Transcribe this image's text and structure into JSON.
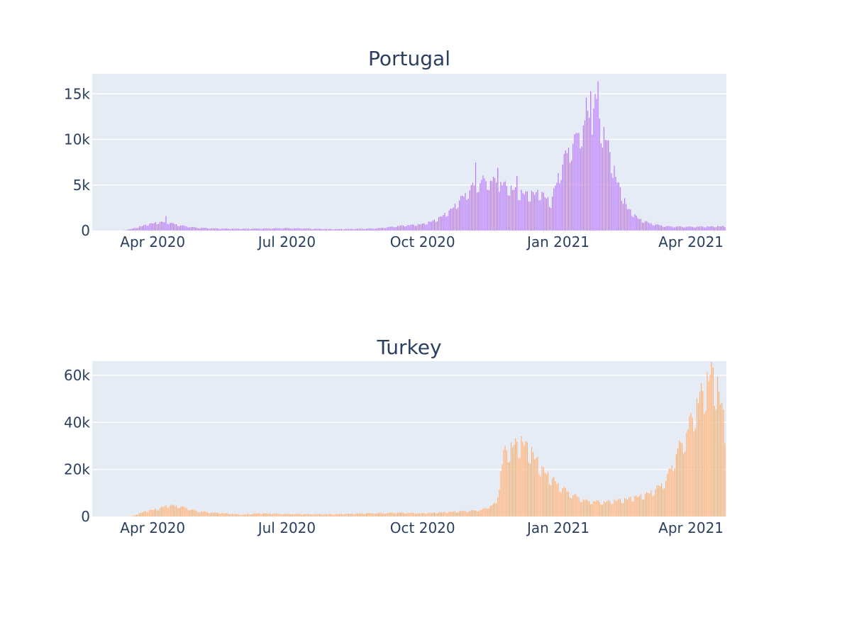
{
  "chart_data": [
    {
      "type": "bar",
      "title": "Portugal",
      "xlabel": "",
      "ylabel": "",
      "color": "#ab63fa",
      "background": "#e5ecf6",
      "x_start": "2020-03-02",
      "x_end": "2021-04-24",
      "xlim": [
        "2020-02-20",
        "2021-04-25"
      ],
      "x_ticks": [
        {
          "date": "2020-04-01",
          "label": "Apr 2020"
        },
        {
          "date": "2020-07-01",
          "label": "Jul 2020"
        },
        {
          "date": "2020-10-01",
          "label": "Oct 2020"
        },
        {
          "date": "2021-01-01",
          "label": "Jan 2021"
        },
        {
          "date": "2021-04-01",
          "label": "Apr 2021"
        }
      ],
      "ylim": [
        0,
        17200
      ],
      "y_ticks": [
        {
          "value": 0,
          "label": "0"
        },
        {
          "value": 5000,
          "label": "5k"
        },
        {
          "value": 10000,
          "label": "10k"
        },
        {
          "value": 15000,
          "label": "15k"
        }
      ],
      "keypoints": [
        [
          "2020-03-02",
          0
        ],
        [
          "2020-03-12",
          20
        ],
        [
          "2020-03-20",
          300
        ],
        [
          "2020-03-28",
          700
        ],
        [
          "2020-04-03",
          900
        ],
        [
          "2020-04-10",
          1000
        ],
        [
          "2020-04-20",
          600
        ],
        [
          "2020-05-01",
          350
        ],
        [
          "2020-05-15",
          250
        ],
        [
          "2020-06-01",
          220
        ],
        [
          "2020-06-15",
          250
        ],
        [
          "2020-07-01",
          300
        ],
        [
          "2020-07-15",
          250
        ],
        [
          "2020-08-01",
          180
        ],
        [
          "2020-08-15",
          200
        ],
        [
          "2020-09-01",
          280
        ],
        [
          "2020-09-15",
          550
        ],
        [
          "2020-10-01",
          750
        ],
        [
          "2020-10-10",
          1200
        ],
        [
          "2020-10-20",
          2300
        ],
        [
          "2020-10-28",
          3800
        ],
        [
          "2020-11-05",
          5200
        ],
        [
          "2020-11-12",
          5800
        ],
        [
          "2020-11-20",
          5600
        ],
        [
          "2020-11-28",
          5000
        ],
        [
          "2020-12-05",
          4300
        ],
        [
          "2020-12-12",
          4100
        ],
        [
          "2020-12-20",
          4300
        ],
        [
          "2020-12-27",
          3200
        ],
        [
          "2021-01-01",
          6200
        ],
        [
          "2021-01-07",
          9000
        ],
        [
          "2021-01-14",
          11000
        ],
        [
          "2021-01-21",
          13000
        ],
        [
          "2021-01-27",
          14000
        ],
        [
          "2021-02-03",
          10000
        ],
        [
          "2021-02-10",
          5500
        ],
        [
          "2021-02-17",
          2500
        ],
        [
          "2021-02-25",
          1300
        ],
        [
          "2021-03-05",
          800
        ],
        [
          "2021-03-15",
          500
        ],
        [
          "2021-04-01",
          450
        ],
        [
          "2021-04-24",
          500
        ]
      ],
      "overrides": [
        [
          "2020-04-10",
          1600
        ],
        [
          "2020-11-06",
          7500
        ],
        [
          "2020-11-21",
          6900
        ],
        [
          "2020-12-04",
          6000
        ],
        [
          "2021-01-13",
          10700
        ],
        [
          "2021-01-23",
          15300
        ],
        [
          "2021-01-28",
          16400
        ],
        [
          "2021-01-26",
          15000
        ],
        [
          "2021-01-20",
          14600
        ]
      ]
    },
    {
      "type": "bar",
      "title": "Turkey",
      "xlabel": "",
      "ylabel": "",
      "color": "#ffa15a",
      "background": "#e5ecf6",
      "x_start": "2020-03-11",
      "x_end": "2021-04-24",
      "xlim": [
        "2020-02-20",
        "2021-04-25"
      ],
      "x_ticks": [
        {
          "date": "2020-04-01",
          "label": "Apr 2020"
        },
        {
          "date": "2020-07-01",
          "label": "Jul 2020"
        },
        {
          "date": "2020-10-01",
          "label": "Oct 2020"
        },
        {
          "date": "2021-01-01",
          "label": "Jan 2021"
        },
        {
          "date": "2021-04-01",
          "label": "Apr 2021"
        }
      ],
      "ylim": [
        0,
        66000
      ],
      "y_ticks": [
        {
          "value": 0,
          "label": "0"
        },
        {
          "value": 20000,
          "label": "20k"
        },
        {
          "value": 40000,
          "label": "40k"
        },
        {
          "value": 60000,
          "label": "60k"
        }
      ],
      "keypoints": [
        [
          "2020-03-11",
          0
        ],
        [
          "2020-03-18",
          200
        ],
        [
          "2020-03-25",
          2000
        ],
        [
          "2020-04-01",
          3000
        ],
        [
          "2020-04-05",
          3500
        ],
        [
          "2020-04-11",
          5000
        ],
        [
          "2020-04-19",
          4700
        ],
        [
          "2020-05-01",
          2500
        ],
        [
          "2020-05-15",
          1700
        ],
        [
          "2020-06-01",
          900
        ],
        [
          "2020-06-12",
          1500
        ],
        [
          "2020-07-01",
          1200
        ],
        [
          "2020-08-01",
          1100
        ],
        [
          "2020-09-01",
          1600
        ],
        [
          "2020-09-15",
          1800
        ],
        [
          "2020-10-01",
          1500
        ],
        [
          "2020-10-20",
          2100
        ],
        [
          "2020-11-10",
          3000
        ],
        [
          "2020-11-20",
          6000
        ],
        [
          "2020-11-25",
          28000
        ],
        [
          "2020-12-01",
          31000
        ],
        [
          "2020-12-08",
          32500
        ],
        [
          "2020-12-14",
          28000
        ],
        [
          "2020-12-22",
          20000
        ],
        [
          "2021-01-01",
          14000
        ],
        [
          "2021-01-10",
          10000
        ],
        [
          "2021-01-20",
          7000
        ],
        [
          "2021-02-01",
          6500
        ],
        [
          "2021-02-15",
          7500
        ],
        [
          "2021-03-01",
          9500
        ],
        [
          "2021-03-08",
          12000
        ],
        [
          "2021-03-15",
          16000
        ],
        [
          "2021-03-22",
          28000
        ],
        [
          "2021-03-29",
          37000
        ],
        [
          "2021-04-05",
          50000
        ],
        [
          "2021-04-10",
          56000
        ],
        [
          "2021-04-14",
          62000
        ],
        [
          "2021-04-16",
          62500
        ],
        [
          "2021-04-20",
          54000
        ],
        [
          "2021-04-24",
          40000
        ]
      ],
      "overrides": []
    }
  ]
}
